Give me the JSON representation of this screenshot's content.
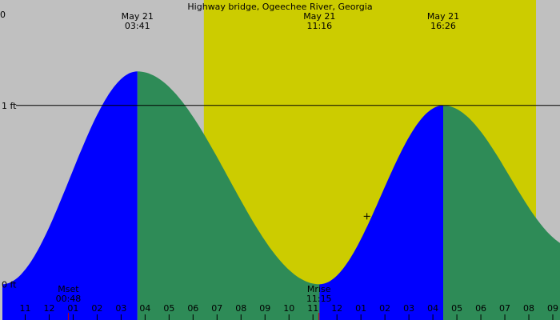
{
  "chart_data": {
    "type": "area",
    "title": "Highway bridge, Ogeechee River, Georgia",
    "y_unit": "ft",
    "x_range_hours": [
      -2.05,
      21.3
    ],
    "y_range_ft": [
      -0.2,
      1.5
    ],
    "colors": {
      "background": "#c0c0c0",
      "daylight": "#cccc00",
      "rising": "#0000ff",
      "falling": "#2e8b57",
      "line": "#000000",
      "moon_tick": "#cc0000"
    },
    "daylight": {
      "start": 6.45,
      "end": 20.3
    },
    "tide_points": [
      {
        "hour": -1.95,
        "height": 0.0
      },
      {
        "hour": 3.68,
        "height": 1.19
      },
      {
        "hour": 11.27,
        "height": 0.0
      },
      {
        "hour": 16.43,
        "height": 1.0
      },
      {
        "hour": 22.0,
        "height": 0.2
      }
    ],
    "extremes": [
      {
        "date": "May 21",
        "time": "03:41",
        "hour": 3.68
      },
      {
        "date": "May 21",
        "time": "11:16",
        "hour": 11.27
      },
      {
        "date": "May 21",
        "time": "16:26",
        "hour": 16.43
      }
    ],
    "corner_label": "0",
    "y_labels": [
      {
        "label": "1 ft",
        "value": 1.0,
        "line": true
      },
      {
        "label": "0 ft",
        "value": 0.0,
        "line": false
      }
    ],
    "x_ticks": [
      {
        "label": "11",
        "hour": -1
      },
      {
        "label": "12",
        "hour": 0
      },
      {
        "label": "01",
        "hour": 1
      },
      {
        "label": "02",
        "hour": 2
      },
      {
        "label": "03",
        "hour": 3
      },
      {
        "label": "04",
        "hour": 4
      },
      {
        "label": "05",
        "hour": 5
      },
      {
        "label": "06",
        "hour": 6
      },
      {
        "label": "07",
        "hour": 7
      },
      {
        "label": "08",
        "hour": 8
      },
      {
        "label": "09",
        "hour": 9
      },
      {
        "label": "10",
        "hour": 10
      },
      {
        "label": "11",
        "hour": 11
      },
      {
        "label": "12",
        "hour": 12
      },
      {
        "label": "01",
        "hour": 13
      },
      {
        "label": "02",
        "hour": 14
      },
      {
        "label": "03",
        "hour": 15
      },
      {
        "label": "04",
        "hour": 16
      },
      {
        "label": "05",
        "hour": 17
      },
      {
        "label": "06",
        "hour": 18
      },
      {
        "label": "07",
        "hour": 19
      },
      {
        "label": "08",
        "hour": 20
      },
      {
        "label": "09",
        "hour": 21
      }
    ],
    "moon_events": [
      {
        "label": "Mset",
        "time": "00:48",
        "hour": 0.8
      },
      {
        "label": "Mrise",
        "time": "11:15",
        "hour": 11.25
      }
    ],
    "marker": {
      "hour": 13.25,
      "height": 0.38
    }
  }
}
